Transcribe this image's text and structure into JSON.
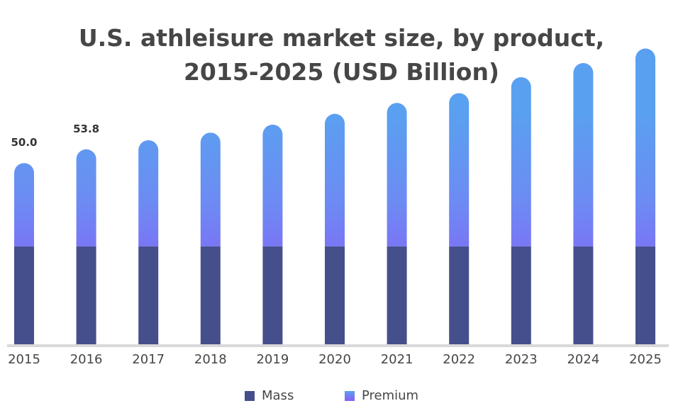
{
  "chart_data": {
    "type": "bar",
    "stacked": true,
    "title_lines": [
      "U.S. athleisure market size, by product,",
      "2015-2025 (USD Billion)"
    ],
    "categories": [
      "2015",
      "2016",
      "2017",
      "2018",
      "2019",
      "2020",
      "2021",
      "2022",
      "2023",
      "2024",
      "2025"
    ],
    "series": [
      {
        "name": "Mass",
        "values": [
          27.0,
          27.0,
          27.0,
          27.0,
          27.0,
          27.0,
          27.0,
          27.0,
          27.0,
          27.0,
          27.0
        ],
        "color": "#454f8c"
      },
      {
        "name": "Premium",
        "values": [
          23.0,
          26.8,
          29.3,
          31.4,
          33.6,
          36.6,
          39.6,
          42.3,
          46.7,
          50.6,
          54.6
        ],
        "color": "#5e9ff0"
      }
    ],
    "totals_labeled": [
      {
        "category": "2015",
        "label": "50.0"
      },
      {
        "category": "2016",
        "label": "53.8"
      }
    ],
    "ylim": [
      0,
      95
    ],
    "grid": false,
    "legend_position": "bottom-center",
    "colors": {
      "mass": "#454f8c",
      "premium_top": "#5aa0f0",
      "premium_bottom": "#8a5cf5",
      "baseline": "#d9d9d9",
      "text": "#464646"
    }
  }
}
